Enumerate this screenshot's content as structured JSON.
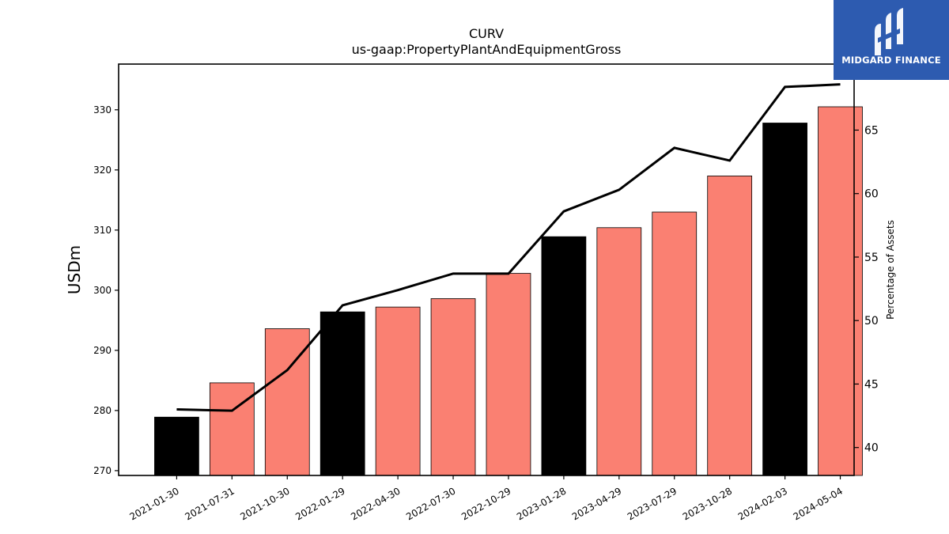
{
  "logo": {
    "text": "MIDGARD FINANCE",
    "color": "#2d5bb0"
  },
  "chart_data": {
    "type": "bar",
    "title": "CURV",
    "subtitle": "us-gaap:PropertyPlantAndEquipmentGross",
    "ylabel": "USDm",
    "y2label": "Percentage of Assets",
    "categories": [
      "2021-01-30",
      "2021-07-31",
      "2021-10-30",
      "2022-01-29",
      "2022-04-30",
      "2022-07-30",
      "2022-10-29",
      "2023-01-28",
      "2023-04-29",
      "2023-07-29",
      "2023-10-28",
      "2024-02-03",
      "2024-05-04"
    ],
    "series": [
      {
        "type": "bar",
        "axis": "left",
        "values": [
          278.9,
          284.6,
          293.6,
          296.4,
          297.2,
          298.6,
          302.8,
          308.9,
          310.4,
          313.0,
          319.0,
          327.8,
          330.5
        ]
      },
      {
        "type": "line",
        "axis": "right",
        "values": [
          43.0,
          42.9,
          46.1,
          51.2,
          52.4,
          53.7,
          53.7,
          58.6,
          60.3,
          63.6,
          62.6,
          68.4,
          68.6
        ]
      }
    ],
    "bar_colors": [
      "#000000",
      "#fa8072",
      "#fa8072",
      "#000000",
      "#fa8072",
      "#fa8072",
      "#fa8072",
      "#000000",
      "#fa8072",
      "#fa8072",
      "#fa8072",
      "#000000",
      "#fa8072"
    ],
    "line_color": "#000000",
    "ylim": [
      269.2,
      337.6
    ],
    "yticks": [
      270,
      280,
      290,
      300,
      310,
      320,
      330
    ],
    "y2lim": [
      37.8,
      70.2
    ],
    "y2ticks": [
      40,
      45,
      50,
      55,
      60,
      65
    ],
    "grid": false,
    "legend": "none"
  }
}
